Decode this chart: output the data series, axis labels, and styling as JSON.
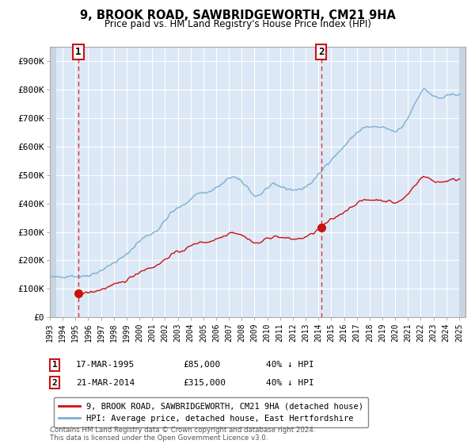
{
  "title": "9, BROOK ROAD, SAWBRIDGEWORTH, CM21 9HA",
  "subtitle": "Price paid vs. HM Land Registry's House Price Index (HPI)",
  "ylim": [
    0,
    950000
  ],
  "yticks": [
    0,
    100000,
    200000,
    300000,
    400000,
    500000,
    600000,
    700000,
    800000,
    900000
  ],
  "ytick_labels": [
    "£0",
    "£100K",
    "£200K",
    "£300K",
    "£400K",
    "£500K",
    "£600K",
    "£700K",
    "£800K",
    "£900K"
  ],
  "hpi_color": "#7aafd4",
  "price_color": "#cc1111",
  "legend_price_label": "9, BROOK ROAD, SAWBRIDGEWORTH, CM21 9HA (detached house)",
  "legend_hpi_label": "HPI: Average price, detached house, East Hertfordshire",
  "table_row1": [
    "1",
    "17-MAR-1995",
    "£85,000",
    "40% ↓ HPI"
  ],
  "table_row2": [
    "2",
    "21-MAR-2014",
    "£315,000",
    "40% ↓ HPI"
  ],
  "footnote": "Contains HM Land Registry data © Crown copyright and database right 2024.\nThis data is licensed under the Open Government Licence v3.0.",
  "background_plot": "#dce8f5",
  "grid_color": "#ffffff",
  "hatch_color": "#c8d4e0",
  "xlim_start": 1993.0,
  "xlim_end": 2025.5,
  "purchase1_x": 1995.21,
  "purchase1_y": 85000,
  "purchase2_x": 2014.21,
  "purchase2_y": 315000
}
